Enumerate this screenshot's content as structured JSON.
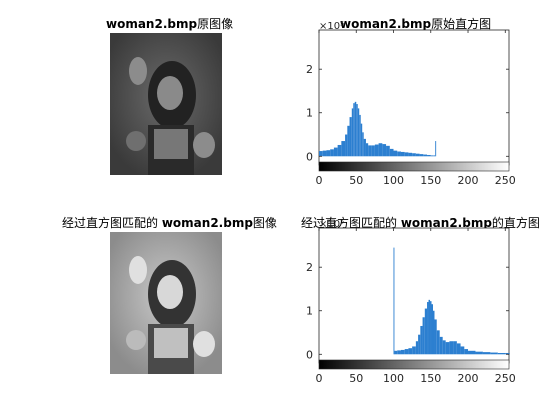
{
  "figure": {
    "panels": [
      {
        "title_prefix": "",
        "title_bold": "woman2.bmp",
        "title_suffix": "原图像",
        "image_icon": "photo-woman-original"
      },
      {
        "title_prefix": "",
        "title_bold": "woman2.bmp",
        "title_suffix": "原始直方图",
        "exponent_label": "×10⁵"
      },
      {
        "title_prefix": "经过直方图匹配的",
        "title_bold": "woman2.bmp",
        "title_suffix": "图像",
        "image_icon": "photo-woman-matched"
      },
      {
        "title_prefix": "经过直方图匹配的",
        "title_bold": "woman2.bmp",
        "title_suffix": "的直方图",
        "exponent_label": "×10⁵"
      }
    ]
  },
  "chart_data": [
    {
      "type": "bar",
      "title": "woman2.bmp原始直方图",
      "xlabel": "",
      "ylabel": "",
      "xlim": [
        0,
        255
      ],
      "ylim": [
        -0.2,
        2.9
      ],
      "y_multiplier": "×10⁵",
      "x_ticks": [
        "0",
        "50",
        "100",
        "150",
        "200",
        "250"
      ],
      "y_ticks": [
        "0",
        "1",
        "2"
      ],
      "colorbar": "gray",
      "bar_color": "#2c7fd0",
      "bins_x": [
        0,
        5,
        10,
        15,
        20,
        25,
        30,
        35,
        38,
        41,
        44,
        46,
        48,
        50,
        52,
        54,
        56,
        58,
        60,
        63,
        66,
        70,
        75,
        80,
        85,
        90,
        95,
        100,
        105,
        110,
        115,
        120,
        125,
        130,
        135,
        140,
        145,
        150,
        154,
        156
      ],
      "bins_y": [
        0.12,
        0.13,
        0.14,
        0.16,
        0.2,
        0.26,
        0.35,
        0.5,
        0.7,
        0.9,
        1.1,
        1.22,
        1.25,
        1.2,
        1.1,
        0.95,
        0.75,
        0.55,
        0.4,
        0.3,
        0.25,
        0.25,
        0.27,
        0.3,
        0.28,
        0.24,
        0.17,
        0.13,
        0.11,
        0.1,
        0.09,
        0.08,
        0.07,
        0.06,
        0.05,
        0.04,
        0.03,
        0.02,
        0.02,
        0.35
      ]
    },
    {
      "type": "bar",
      "title": "经过直方图匹配的 woman2.bmp的直方图",
      "xlabel": "",
      "ylabel": "",
      "xlim": [
        0,
        255
      ],
      "ylim": [
        -0.2,
        2.9
      ],
      "y_multiplier": "×10⁵",
      "x_ticks": [
        "0",
        "50",
        "100",
        "150",
        "200",
        "250"
      ],
      "y_ticks": [
        "0",
        "1",
        "2"
      ],
      "colorbar": "gray",
      "bar_color": "#2c7fd0",
      "bins_x": [
        100,
        101,
        105,
        110,
        115,
        120,
        125,
        130,
        133,
        136,
        139,
        142,
        145,
        147,
        149,
        151,
        153,
        155,
        158,
        162,
        166,
        170,
        175,
        180,
        185,
        190,
        195,
        200,
        210,
        220,
        230,
        240,
        250,
        255
      ],
      "bins_y": [
        2.45,
        0.08,
        0.09,
        0.1,
        0.12,
        0.14,
        0.18,
        0.3,
        0.45,
        0.65,
        0.85,
        1.05,
        1.2,
        1.25,
        1.22,
        1.15,
        1.0,
        0.8,
        0.55,
        0.4,
        0.32,
        0.28,
        0.3,
        0.3,
        0.25,
        0.18,
        0.12,
        0.08,
        0.06,
        0.05,
        0.04,
        0.03,
        0.03,
        0.02
      ]
    }
  ]
}
